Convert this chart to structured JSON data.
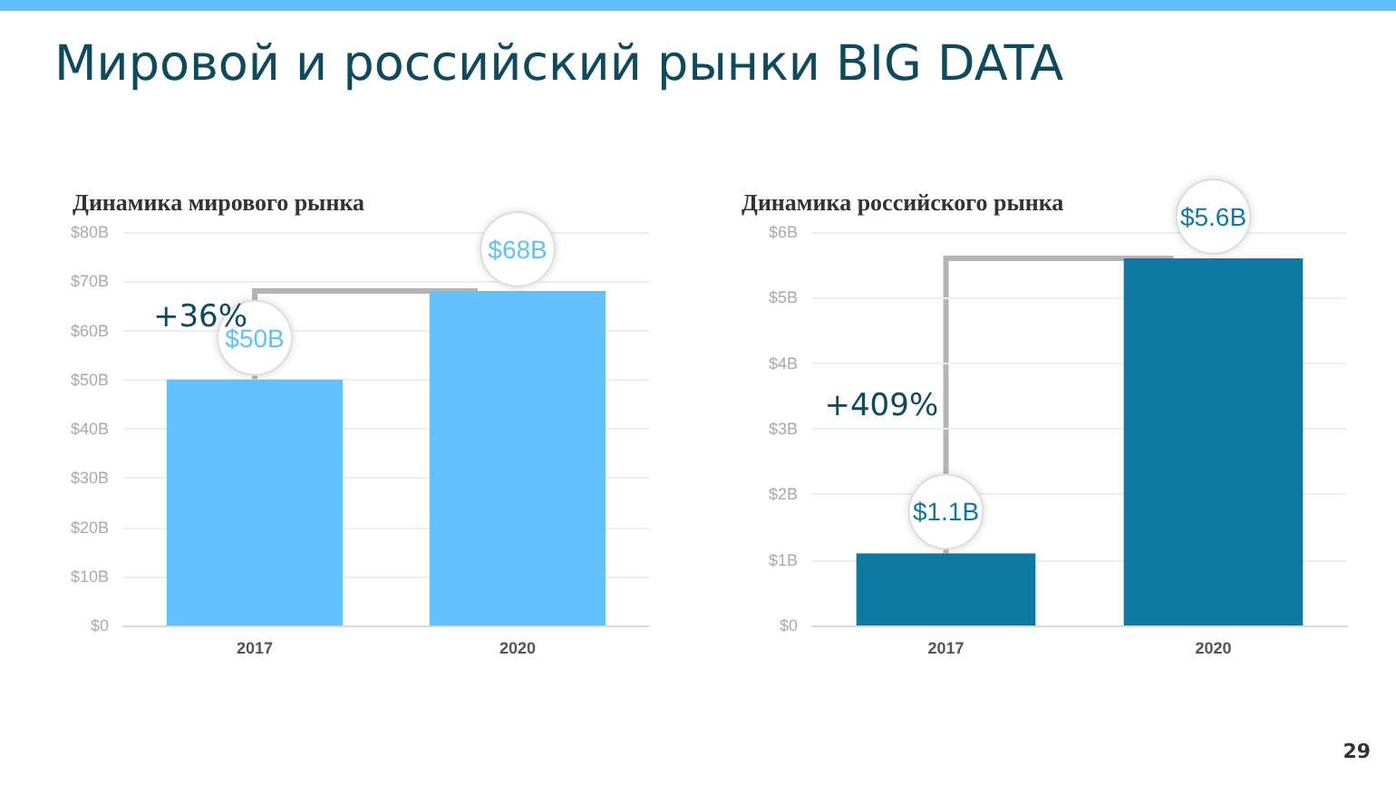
{
  "chart_data": [
    {
      "type": "bar",
      "title": "Мировой и российский рынки BIG DATA",
      "subtitle": "Динамика мирового рынка",
      "categories": [
        "2017",
        "2020"
      ],
      "values": [
        50,
        68
      ],
      "value_labels": [
        "$50B",
        "$68B"
      ],
      "color": "#62c1fe",
      "ylim": [
        0,
        80
      ],
      "yticks": [
        {
          "value": 0,
          "label": "$0"
        },
        {
          "value": 10,
          "label": "$10B"
        },
        {
          "value": 20,
          "label": "$20B"
        },
        {
          "value": 30,
          "label": "$30B"
        },
        {
          "value": 40,
          "label": "$40B"
        },
        {
          "value": 50,
          "label": "$50B"
        },
        {
          "value": 60,
          "label": "$60B"
        },
        {
          "value": 70,
          "label": "$70B"
        },
        {
          "value": 80,
          "label": "$80B"
        }
      ],
      "grid": "y",
      "annotations": [
        "+36%"
      ]
    },
    {
      "type": "bar",
      "title": "Динамика российского рынка",
      "categories": [
        "2017",
        "2020"
      ],
      "values": [
        1.1,
        5.6
      ],
      "value_labels": [
        "$1.1B",
        "$5.6B"
      ],
      "color": "#0d79a0",
      "ylim": [
        0,
        6
      ],
      "yticks": [
        {
          "value": 0,
          "label": "$0"
        },
        {
          "value": 1,
          "label": "$1B"
        },
        {
          "value": 2,
          "label": "$2B"
        },
        {
          "value": 3,
          "label": "$3B"
        },
        {
          "value": 4,
          "label": "$4B"
        },
        {
          "value": 5,
          "label": "$5B"
        },
        {
          "value": 6,
          "label": "$6B"
        }
      ],
      "grid": "y",
      "annotations": [
        "+409%",
        "29"
      ]
    }
  ]
}
